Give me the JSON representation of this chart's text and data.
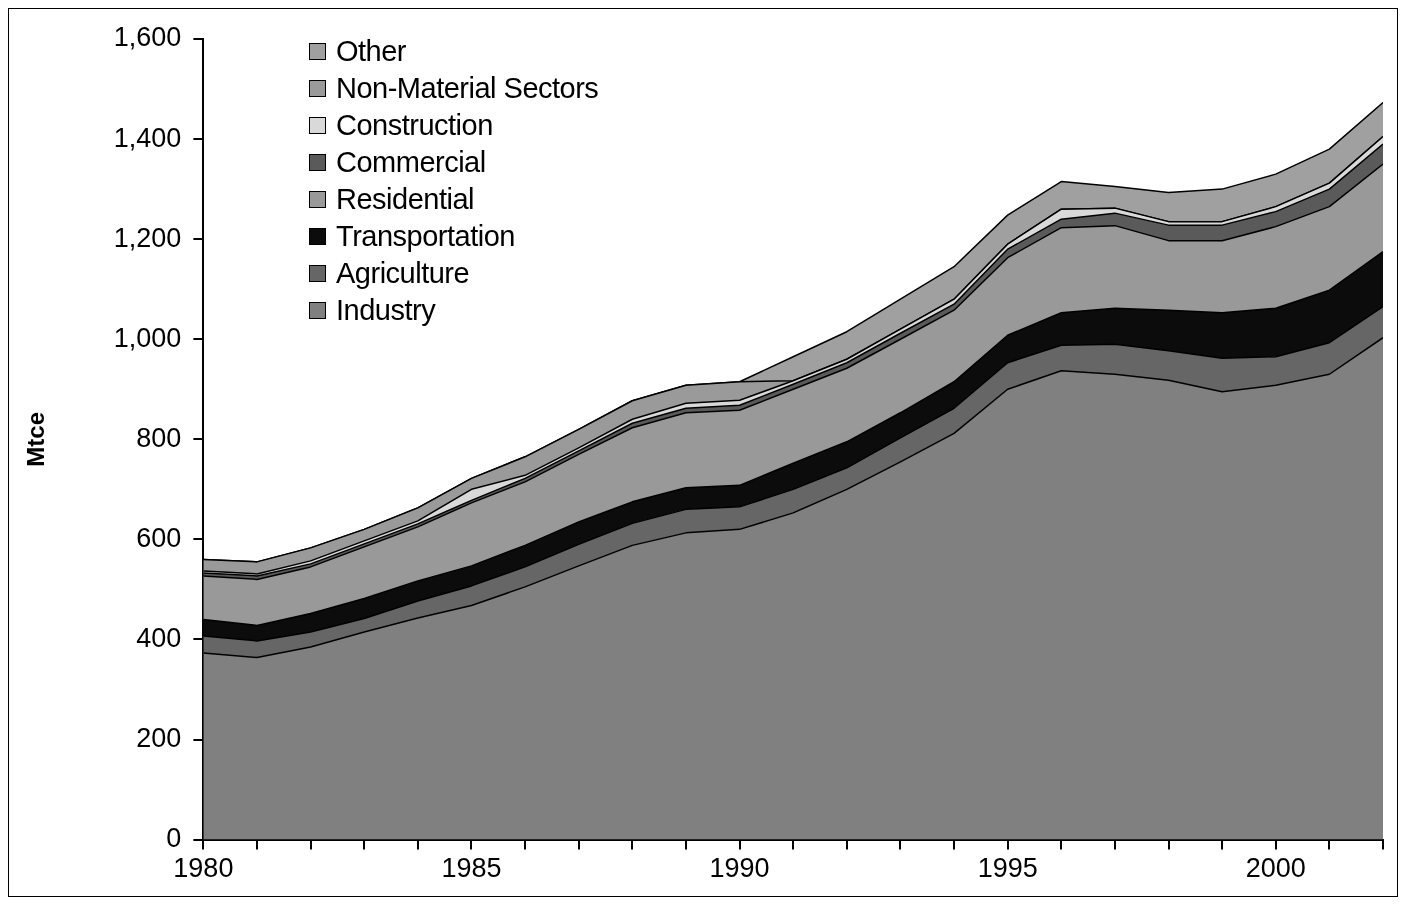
{
  "chart_data": {
    "type": "area",
    "ylabel": "Mtce",
    "stacked": true,
    "grid": false,
    "legend": "top left",
    "x": [
      1980,
      1981,
      1982,
      1983,
      1984,
      1985,
      1986,
      1987,
      1988,
      1989,
      1990,
      1991,
      1992,
      1993,
      1994,
      1995,
      1996,
      1997,
      1998,
      1999,
      2000,
      2001,
      2002
    ],
    "xlim": [
      1980,
      2002
    ],
    "xticks": [
      1980,
      {
        "value": 1981,
        "label": null
      },
      {
        "value": 1982,
        "label": null
      },
      {
        "value": 1983,
        "label": null
      },
      {
        "value": 1984,
        "label": null
      },
      1985,
      {
        "value": 1986,
        "label": null
      },
      {
        "value": 1987,
        "label": null
      },
      {
        "value": 1988,
        "label": null
      },
      {
        "value": 1989,
        "label": null
      },
      1990,
      {
        "value": 1991,
        "label": null
      },
      {
        "value": 1992,
        "label": null
      },
      {
        "value": 1993,
        "label": null
      },
      {
        "value": 1994,
        "label": null
      },
      1995,
      {
        "value": 1996,
        "label": null
      },
      {
        "value": 1997,
        "label": null
      },
      {
        "value": 1998,
        "label": null
      },
      {
        "value": 1999,
        "label": null
      },
      2000,
      {
        "value": 2001,
        "label": null
      },
      {
        "value": 2002,
        "label": null
      }
    ],
    "ylim": [
      0,
      1600
    ],
    "yticks": [
      0,
      200,
      400,
      600,
      800,
      {
        "value": 1000,
        "label": "1,000"
      },
      {
        "value": 1200,
        "label": "1,200"
      },
      {
        "value": 1400,
        "label": "1,400"
      },
      {
        "value": 1600,
        "label": "1,600"
      }
    ],
    "series": [
      {
        "name": "Industry",
        "color": "#808080",
        "values": [
          373,
          364,
          385,
          415,
          443,
          468,
          505,
          547,
          588,
          613,
          620,
          653,
          700,
          755,
          812,
          900,
          937,
          930,
          918,
          895,
          908,
          930,
          1003
        ]
      },
      {
        "name": "Agriculture",
        "color": "#666666",
        "values": [
          34,
          33,
          30,
          27,
          34,
          39,
          40,
          43,
          44,
          47,
          45,
          47,
          43,
          48,
          50,
          53,
          51,
          60,
          59,
          67,
          57,
          63,
          62
        ]
      },
      {
        "name": "Transportation",
        "color": "#0c0c0c",
        "values": [
          33,
          31,
          37,
          40,
          40,
          40,
          43,
          45,
          43,
          43,
          43,
          52,
          52,
          50,
          53,
          55,
          65,
          72,
          81,
          91,
          97,
          105,
          110
        ]
      },
      {
        "name": "Residential",
        "color": "#999999",
        "values": [
          87,
          92,
          93,
          103,
          108,
          126,
          127,
          135,
          148,
          150,
          150,
          148,
          147,
          147,
          143,
          155,
          170,
          165,
          139,
          144,
          163,
          167,
          175
        ]
      },
      {
        "name": "Commercial",
        "color": "#5a5a5a",
        "values": [
          6,
          7,
          6,
          6,
          6,
          5,
          7,
          7,
          9,
          9,
          10,
          10,
          11,
          12,
          12,
          17,
          17,
          25,
          31,
          31,
          30,
          35,
          40
        ]
      },
      {
        "name": "Construction",
        "color": "#d9d9d9",
        "values": [
          4,
          4,
          6,
          6,
          6,
          22,
          6,
          6,
          8,
          10,
          10,
          7,
          7,
          8,
          10,
          10,
          20,
          10,
          7,
          7,
          10,
          12,
          15
        ]
      },
      {
        "name": "Non-Material Sectors",
        "color": "#9a9a9a",
        "values": [
          23,
          24,
          26,
          23,
          26,
          22,
          37,
          37,
          37,
          36,
          37,
          0,
          0,
          0,
          0,
          0,
          0,
          0,
          0,
          0,
          0,
          0,
          0
        ]
      },
      {
        "name": "Other",
        "color": "#a0a0a0",
        "values": [
          0,
          0,
          0,
          0,
          0,
          0,
          0,
          0,
          0,
          0,
          0,
          48,
          55,
          60,
          65,
          58,
          55,
          43,
          58,
          65,
          65,
          68,
          68
        ]
      }
    ]
  }
}
